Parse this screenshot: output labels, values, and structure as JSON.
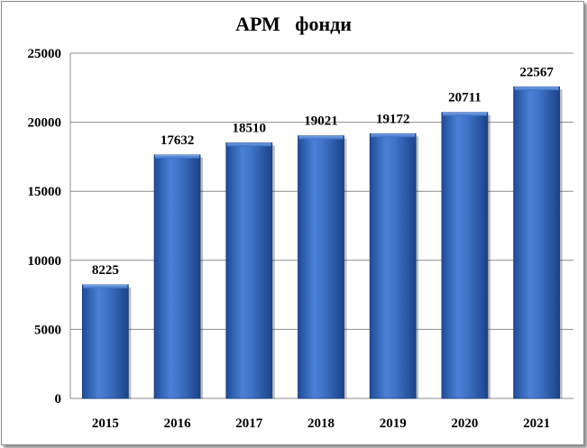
{
  "chart_data": {
    "type": "bar",
    "title": "АРМ   фонди",
    "categories": [
      "2015",
      "2016",
      "2017",
      "2018",
      "2019",
      "2020",
      "2021"
    ],
    "values": [
      8225,
      17632,
      18510,
      19021,
      19172,
      20711,
      22567
    ],
    "yticks": [
      "0",
      "5000",
      "10000",
      "15000",
      "20000",
      "25000"
    ],
    "ylim": [
      0,
      25000
    ],
    "grid": true,
    "bar_color": "#3c6fc4",
    "bar_color_dark": "#1f4f99"
  }
}
